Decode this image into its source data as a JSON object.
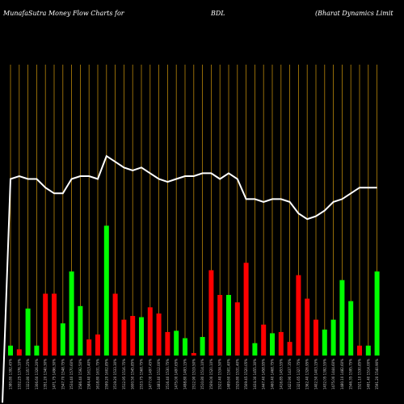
{
  "header": {
    "title": "MunafaSutra  Money Flow  Charts for",
    "symbol": "BDL",
    "company": "(Bharat Dynamics Limit"
  },
  "colors": {
    "background": "#000000",
    "gridline": "#b8860b",
    "up_bar": "#00ff00",
    "down_bar": "#ff0000",
    "line": "#ffffff"
  },
  "chart_data": {
    "type": "bar",
    "grid": true,
    "title": "MunafaSutra  Money Flow  Charts for BDL (Bharat Dynamics Limit",
    "categories": [
      "1380.80 1392.45%",
      "1332.25 1376.10%",
      "1322.80 1357.25%",
      "1306.60 1326.20%",
      "1351.20 1340.30%",
      "1471.75 1496.30%",
      "1547.70 1548.75%",
      "1534.40 1570.60%",
      "1586.40 1592.50%",
      "1584.40 1613.40%",
      "1618.80 1631.75%",
      "1599.20 1602.85%",
      "1519.20 1533.30%",
      "1512.95 1516.75%",
      "1600.50 1545.85%",
      "1533.75 1568.75%",
      "1477.00 1497.45%",
      "1483.40 1512.00%",
      "1516.40 1530.75%",
      "1475.00 1497.65%",
      "1498.80 1493.15%",
      "1512.90 1519.50%",
      "1510.80 1514.10%",
      "1509.00 1520.10%",
      "1522.40 1534.50%",
      "1489.60 1501.40%",
      "1529.80 1531.40%",
      "1509.45 1520.05%",
      "1434.30 1455.30%",
      "1447.40 1458.95%",
      "1460.40 1468.75%",
      "1416.85 1453.55%",
      "1422.90 1437.35%",
      "1321.65 1327.75%",
      "1362.40 1326.95%",
      "1402.50 1403.15%",
      "1432.05 1392.55%",
      "1475.00 1444.60%",
      "1480.10 1482.60%",
      "1546.35 1595.75%",
      "1521.10 1530.85%",
      "1491.40 1514.00%",
      "1591.20 1540.90%"
    ],
    "values": [
      8,
      5,
      38,
      8,
      50,
      50,
      26,
      68,
      40,
      13,
      17,
      105,
      50,
      29,
      32,
      31,
      39,
      34,
      19,
      20,
      14,
      2,
      15,
      69,
      49,
      49,
      43,
      75,
      10,
      25,
      18,
      19,
      11,
      65,
      46,
      29,
      21,
      29,
      61,
      44,
      8,
      8,
      68
    ],
    "directions": [
      "up",
      "down",
      "up",
      "up",
      "down",
      "down",
      "up",
      "up",
      "up",
      "down",
      "down",
      "up",
      "down",
      "down",
      "down",
      "up",
      "down",
      "down",
      "down",
      "up",
      "up",
      "down",
      "up",
      "down",
      "down",
      "up",
      "down",
      "down",
      "up",
      "down",
      "up",
      "down",
      "down",
      "down",
      "down",
      "down",
      "up",
      "up",
      "up",
      "up",
      "down",
      "up",
      "up"
    ],
    "line_values": [
      70,
      71,
      70,
      70,
      67,
      65,
      65,
      70,
      71,
      71,
      70,
      78,
      76,
      74,
      73,
      74,
      72,
      70,
      69,
      70,
      71,
      71,
      72,
      72,
      70,
      72,
      70,
      63,
      63,
      62,
      63,
      63,
      62,
      58,
      56,
      57,
      59,
      62,
      63,
      65,
      67,
      67,
      67
    ],
    "line_start": 70,
    "line_series_start_value": -8
  }
}
